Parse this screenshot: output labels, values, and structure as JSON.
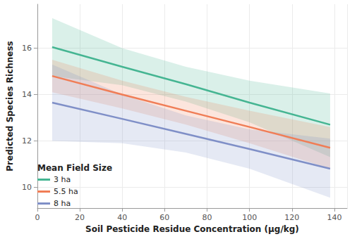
{
  "chart_data": {
    "type": "line",
    "x_label": "Soil Pesticide Residue Concentration (µg/kg)",
    "y_label": "Predicted Species Richness",
    "legend_title": "Mean Field Size",
    "legend": "lower left",
    "grid": true,
    "xlim": [
      0,
      146
    ],
    "xticks": [
      0,
      20,
      40,
      60,
      80,
      100,
      120,
      140
    ],
    "ylim": [
      9.1,
      17.9
    ],
    "yticks": [
      10,
      12,
      14,
      16
    ],
    "x": [
      7,
      40,
      70,
      100,
      138
    ],
    "series": [
      {
        "name": "3 ha",
        "color": "#45b592",
        "values": [
          16.05,
          15.2,
          14.45,
          13.65,
          12.7
        ],
        "lower": [
          14.8,
          14.4,
          13.7,
          12.8,
          11.3
        ],
        "upper": [
          17.3,
          16.0,
          15.2,
          14.6,
          14.05
        ]
      },
      {
        "name": "5.5 ha",
        "color": "#f07d56",
        "values": [
          14.8,
          14.0,
          13.3,
          12.6,
          11.7
        ],
        "lower": [
          14.1,
          13.4,
          12.7,
          11.9,
          10.8
        ],
        "upper": [
          15.5,
          14.6,
          13.9,
          13.3,
          12.6
        ]
      },
      {
        "name": "8 ha",
        "color": "#7f8fc7",
        "values": [
          13.65,
          12.95,
          12.3,
          11.65,
          10.8
        ],
        "lower": [
          12.0,
          11.9,
          11.5,
          10.8,
          9.55
        ],
        "upper": [
          15.3,
          14.0,
          13.1,
          12.5,
          12.1
        ]
      }
    ]
  }
}
